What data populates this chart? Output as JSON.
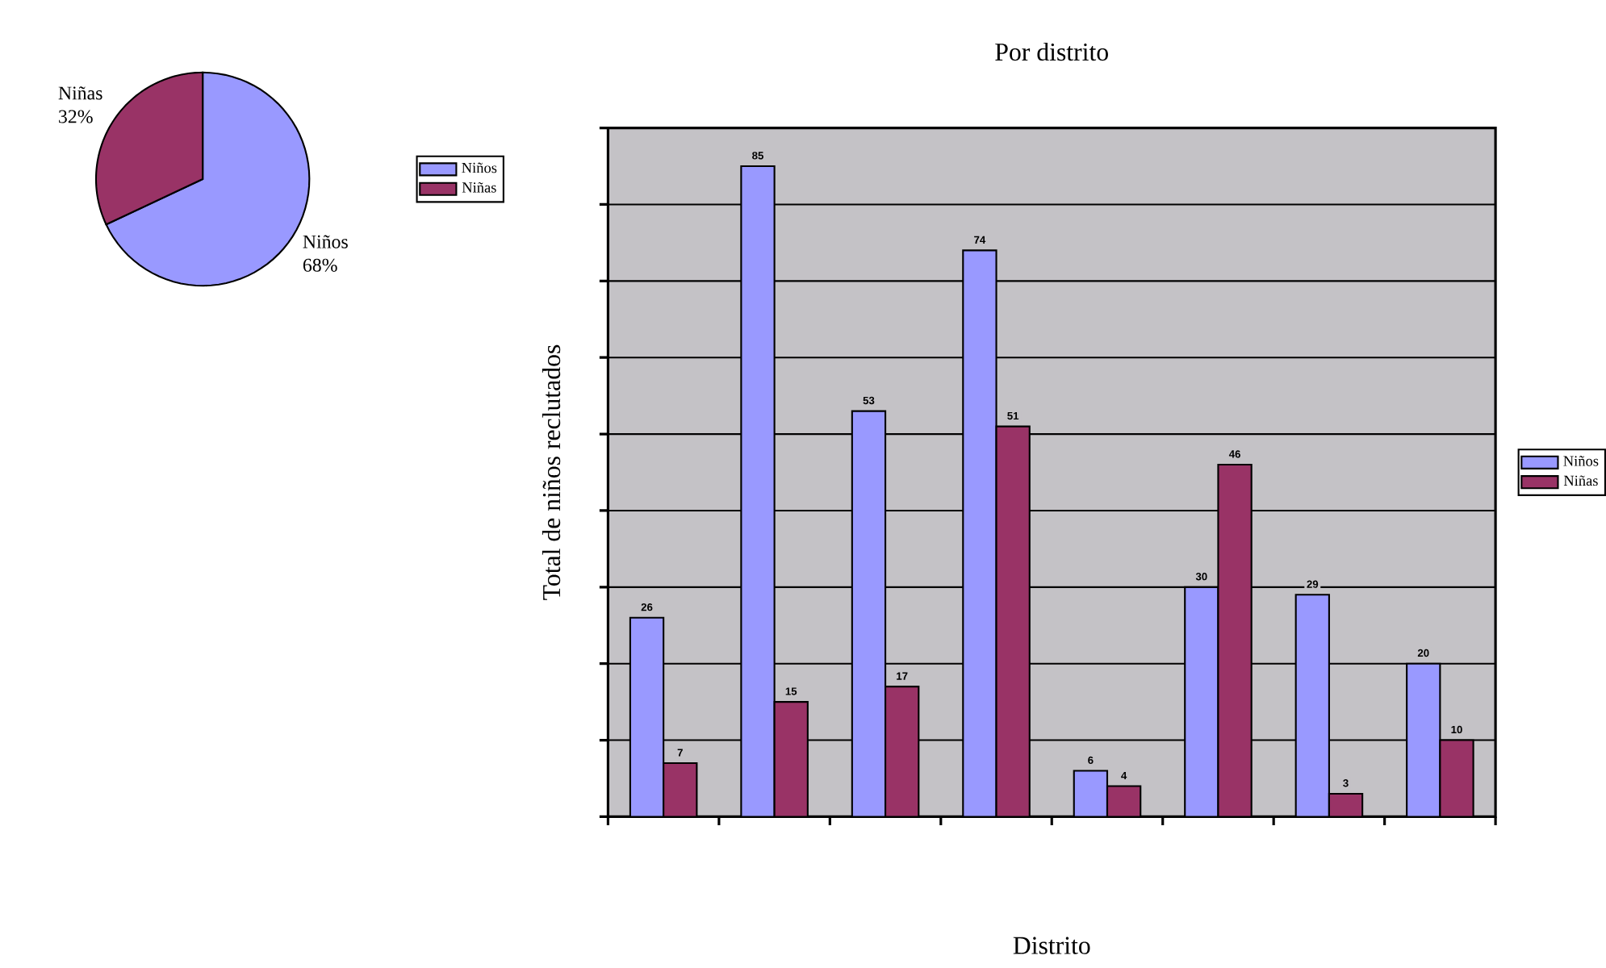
{
  "chart_data": [
    {
      "type": "pie",
      "categories": [
        "Niños",
        "Niñas"
      ],
      "values": [
        68,
        32
      ],
      "value_labels": [
        "68%",
        "32%"
      ],
      "colors": [
        "#9999ff",
        "#993366"
      ],
      "legend": "right"
    },
    {
      "type": "bar",
      "title": "Por distrito",
      "xlabel": "Distrito",
      "ylabel": "Total de niños reclutados",
      "categories": [
        null,
        null,
        null,
        null,
        null,
        null,
        null,
        null
      ],
      "series": [
        {
          "name": "Niños",
          "color": "#9999ff",
          "values": [
            26,
            85,
            53,
            74,
            6,
            30,
            29,
            20
          ]
        },
        {
          "name": "Niñas",
          "color": "#993366",
          "values": [
            7,
            15,
            17,
            51,
            4,
            46,
            3,
            10
          ]
        }
      ],
      "ylim": [
        0,
        90
      ],
      "yticks": [
        {
          "value": 0,
          "label": null
        },
        {
          "value": 10,
          "label": null
        },
        {
          "value": 20,
          "label": null
        },
        {
          "value": 30,
          "label": null
        },
        {
          "value": 40,
          "label": null
        },
        {
          "value": 50,
          "label": null
        },
        {
          "value": 60,
          "label": null
        },
        {
          "value": 70,
          "label": null
        },
        {
          "value": 80,
          "label": null
        },
        {
          "value": 90,
          "label": null
        }
      ],
      "grid": "y",
      "legend": "right",
      "tick_labels": false,
      "data_labels": true
    }
  ]
}
